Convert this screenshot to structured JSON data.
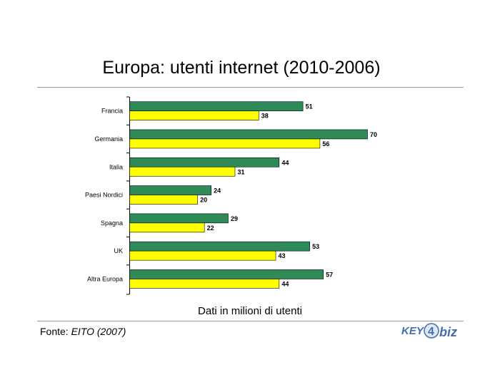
{
  "title": "Europa: utenti internet (2010-2006)",
  "subtitle": "Dati in milioni di utenti",
  "source": {
    "prefix": "Fonte: ",
    "name": "EITO (2007)"
  },
  "logo": {
    "text_left": "KEY",
    "text_right": "biz",
    "digit": "4"
  },
  "colors": {
    "series_2010": "#2e8b57",
    "series_2006": "#ffff00",
    "bar_stroke": "#000000",
    "axis": "#000000",
    "logo_blue": "#3f6fb0",
    "logo_gray": "#8aa0b8"
  },
  "chart_data": {
    "type": "bar",
    "orientation": "horizontal",
    "categories": [
      "Francia",
      "Germania",
      "Italia",
      "Paesi Nordici",
      "Spagna",
      "UK",
      "Altra Europa"
    ],
    "series": [
      {
        "values": [
          51,
          70,
          44,
          24,
          29,
          53,
          57
        ],
        "color": "#2e8b57"
      },
      {
        "values": [
          38,
          56,
          31,
          20,
          22,
          43,
          44
        ],
        "color": "#ffff00"
      }
    ],
    "xlim": [
      0,
      70
    ],
    "data_labels": true,
    "grid": false,
    "legend": "none"
  }
}
